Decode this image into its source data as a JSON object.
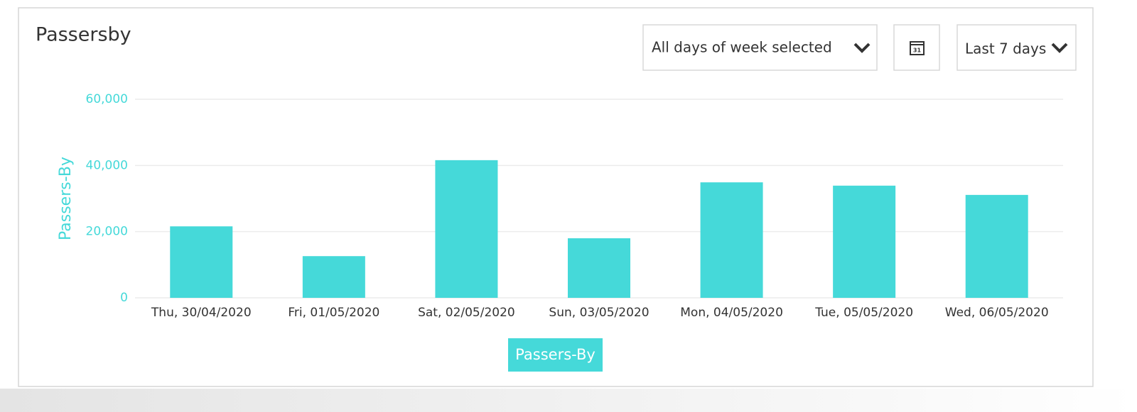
{
  "header": {
    "title": "Passersby"
  },
  "controls": {
    "days_filter": "All days of week selected",
    "calendar_day": "31",
    "range": "Last 7 days"
  },
  "chart_data": {
    "type": "bar",
    "y_label": "Passers-By",
    "categories": [
      "Thu, 30/04/2020",
      "Fri, 01/05/2020",
      "Sat, 02/05/2020",
      "Sun, 03/05/2020",
      "Mon, 04/05/2020",
      "Tue, 05/05/2020",
      "Wed, 06/05/2020"
    ],
    "series": [
      {
        "name": "Passers-By",
        "color": "#45d9d9",
        "values": [
          21600,
          12600,
          41600,
          18000,
          34900,
          33900,
          31100
        ]
      }
    ],
    "ylim": [
      0,
      60000
    ],
    "yticks": [
      0,
      {
        "value": 20000,
        "label": "20,000"
      },
      {
        "value": 40000,
        "label": "40,000"
      },
      {
        "value": 60000,
        "label": "60,000"
      }
    ],
    "grid": true,
    "legend": "bottom"
  }
}
